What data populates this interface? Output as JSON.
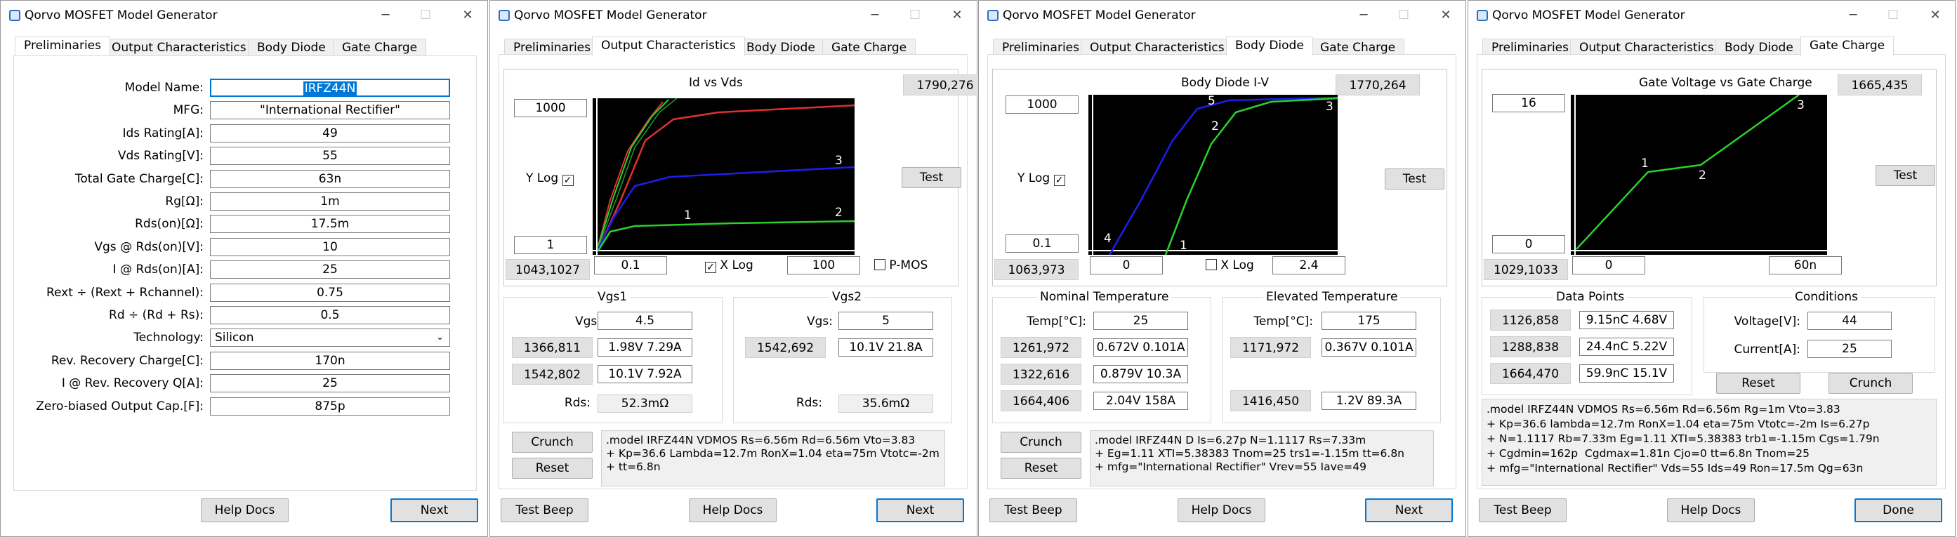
{
  "window_title": "Qorvo MOSFET Model Generator",
  "tabs": [
    "Preliminaries",
    "Output Characteristics",
    "Body Diode",
    "Gate Charge"
  ],
  "window_controls": {
    "minimize": "─",
    "maximize": "☐",
    "close": "✕"
  },
  "w1": {
    "fields": [
      {
        "label": "Model Name:",
        "value": "IRFZ44N"
      },
      {
        "label": "MFG:",
        "value": "\"International Rectifier\""
      },
      {
        "label": "Ids Rating[A]:",
        "value": "49"
      },
      {
        "label": "Vds Rating[V]:",
        "value": "55"
      },
      {
        "label": "Total Gate Charge[C]:",
        "value": "63n"
      },
      {
        "label": "Rg[Ω]:",
        "value": "1m"
      },
      {
        "label": "Rds(on)[Ω]:",
        "value": "17.5m"
      },
      {
        "label": "Vgs @ Rds(on)[V]:",
        "value": "10"
      },
      {
        "label": "I @ Rds(on)[A]:",
        "value": "25"
      },
      {
        "label": "Rext ÷ (Rext + Rchannel):",
        "value": "0.75"
      },
      {
        "label": "Rd ÷ (Rd + Rs):",
        "value": "0.5"
      },
      {
        "label": "Technology:",
        "value": "Silicon"
      },
      {
        "label": "Rev. Recovery Charge[C]:",
        "value": "170n"
      },
      {
        "label": "I @ Rev. Recovery Q[A]:",
        "value": "25"
      },
      {
        "label": "Zero-biased Output Cap.[F]:",
        "value": "875p"
      }
    ],
    "help": "Help Docs",
    "next": "Next"
  },
  "w2": {
    "chart": {
      "title": "Id vs Vds",
      "coord": "1790,276",
      "ymax": "1000",
      "ymin": "1",
      "coord2": "1043,1027",
      "xmin": "0.1",
      "xmax": "100",
      "ylog": "Y Log",
      "xlog": "X Log",
      "pmos": "P-MOS",
      "labels": [
        "1",
        "2",
        "3"
      ]
    },
    "test": "Test",
    "vgs1": {
      "title": "Vgs1",
      "vgs_label": "Vgs:",
      "vgs": "4.5",
      "p1": "1366,811",
      "v1": "1.98V 7.29A",
      "p2": "1542,802",
      "v2": "10.1V 7.92A",
      "rds_label": "Rds:",
      "rds": "52.3mΩ"
    },
    "vgs2": {
      "title": "Vgs2",
      "vgs_label": "Vgs:",
      "vgs": "5",
      "p1": "1542,692",
      "v1": "10.1V 21.8A",
      "rds_label": "Rds:",
      "rds": "35.6mΩ"
    },
    "crunch": "Crunch",
    "reset": "Reset",
    "model": ".model IRFZ44N VDMOS Rs=6.56m Rd=6.56m Vto=3.83\n+ Kp=36.6 Lambda=12.7m RonX=1.04 eta=75m Vtotc=-2m\n+ tt=6.8n",
    "beep": "Test Beep",
    "help": "Help Docs",
    "next": "Next"
  },
  "w3": {
    "chart": {
      "title": "Body Diode I-V",
      "coord": "1770,264",
      "ymax": "1000",
      "ymin": "0.1",
      "coord2": "1063,973",
      "xmin": "0",
      "xmax": "2.4",
      "ylog": "Y Log",
      "xlog": "X Log",
      "labels": [
        "1",
        "2",
        "3",
        "4",
        "5"
      ]
    },
    "test": "Test",
    "nominal": {
      "title": "Nominal Temperature",
      "temp_label": "Temp[°C]:",
      "temp": "25",
      "p1": "1261,972",
      "v1": "0.672V 0.101A",
      "p2": "1322,616",
      "v2": "0.879V 10.3A",
      "p3": "1664,406",
      "v3": "2.04V 158A"
    },
    "elevated": {
      "title": "Elevated Temperature",
      "temp_label": "Temp[°C]:",
      "temp": "175",
      "p1": "1171,972",
      "v1": "0.367V 0.101A",
      "p2": "1416,450",
      "v2": "1.2V 89.3A"
    },
    "crunch": "Crunch",
    "reset": "Reset",
    "model": ".model IRFZ44N D Is=6.27p N=1.1117 Rs=7.33m\n+ Eg=1.11 XTI=5.38383 Tnom=25 trs1=-1.15m tt=6.8n\n+ mfg=\"International Rectifier\" Vrev=55 Iave=49",
    "beep": "Test Beep",
    "help": "Help Docs",
    "next": "Next"
  },
  "w4": {
    "chart": {
      "title": "Gate Voltage vs Gate Charge",
      "coord": "1665,435",
      "ymax": "16",
      "ymin": "0",
      "coord2": "1029,1033",
      "xmin": "0",
      "xmax": "60n",
      "labels": [
        "1",
        "2",
        "3"
      ]
    },
    "test": "Test",
    "datapoints": {
      "title": "Data Points",
      "p1": "1126,858",
      "v1": "9.15nC 4.68V",
      "p2": "1288,838",
      "v2": "24.4nC 5.22V",
      "p3": "1664,470",
      "v3": "59.9nC 15.1V"
    },
    "conditions": {
      "title": "Conditions",
      "voltage_label": "Voltage[V]:",
      "voltage": "44",
      "current_label": "Current[A]:",
      "current": "25"
    },
    "reset": "Reset",
    "crunch": "Crunch",
    "model": ".model IRFZ44N VDMOS Rs=6.56m Rd=6.56m Rg=1m Vto=3.83\n+ Kp=36.6 lambda=12.7m RonX=1.04 eta=75m Vtotc=-2m Is=6.27p\n+ N=1.1117 Rb=7.33m Eg=1.11 XTI=5.38383 trb1=-1.15m Cgs=1.79n\n+ Cgdmin=162p  Cgdmax=1.81n Cjo=0 tt=6.8n Tnom=25\n+ mfg=\"International Rectifier\" Vds=55 Ids=49 Ron=17.5m Qg=63n",
    "beep": "Test Beep",
    "help": "Help Docs",
    "done": "Done"
  }
}
